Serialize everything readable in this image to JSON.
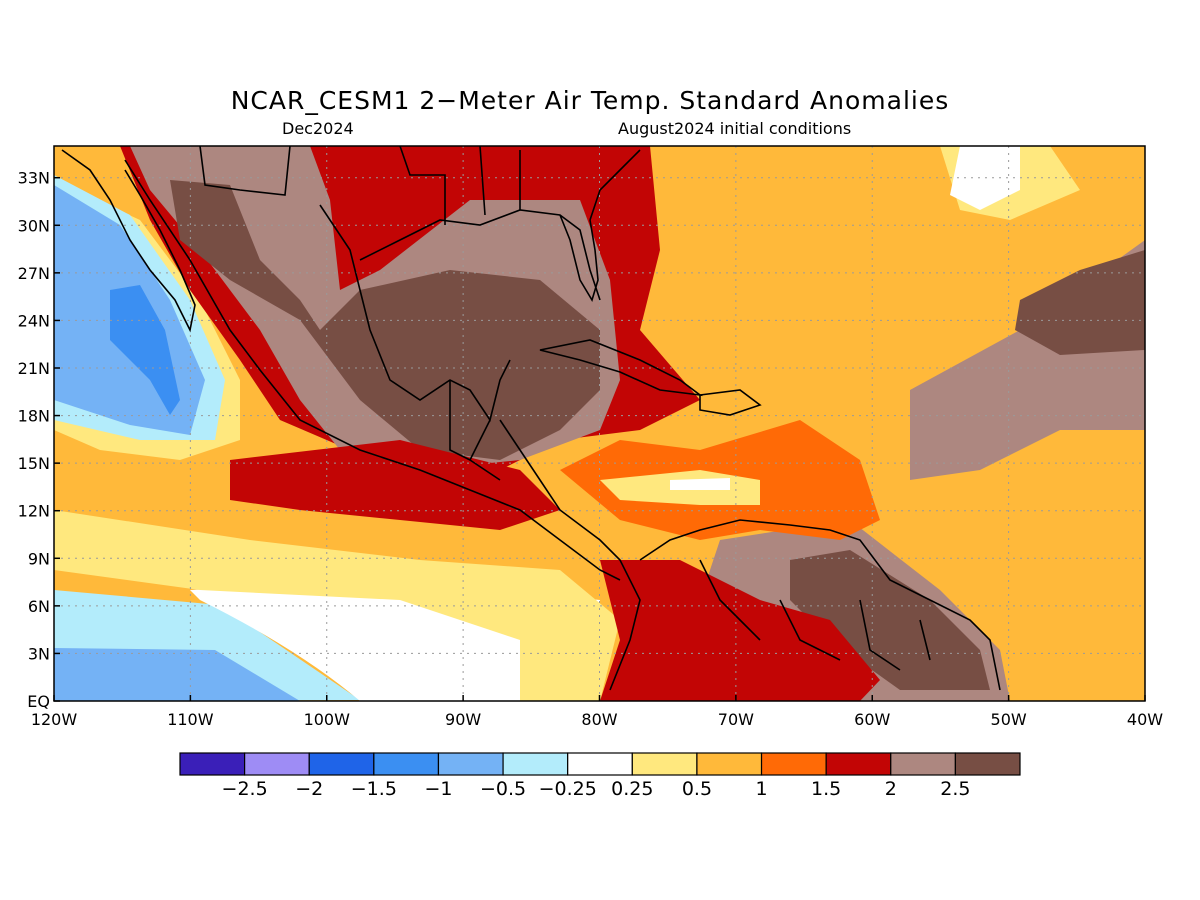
{
  "title": "NCAR_CESM1 2−Meter Air Temp. Standard Anomalies",
  "valid_month": "Dec2024",
  "initial_conditions": "August2024 initial conditions",
  "map": {
    "lon_range": [
      -120,
      -40
    ],
    "lat_range": [
      0,
      35
    ],
    "lat_ticks": [
      {
        "value": 0,
        "label": "EQ"
      },
      {
        "value": 3,
        "label": "3N"
      },
      {
        "value": 6,
        "label": "6N"
      },
      {
        "value": 9,
        "label": "9N"
      },
      {
        "value": 12,
        "label": "12N"
      },
      {
        "value": 15,
        "label": "15N"
      },
      {
        "value": 18,
        "label": "18N"
      },
      {
        "value": 21,
        "label": "21N"
      },
      {
        "value": 24,
        "label": "24N"
      },
      {
        "value": 27,
        "label": "27N"
      },
      {
        "value": 30,
        "label": "30N"
      },
      {
        "value": 33,
        "label": "33N"
      }
    ],
    "lon_ticks": [
      {
        "value": -120,
        "label": "120W"
      },
      {
        "value": -110,
        "label": "110W"
      },
      {
        "value": -100,
        "label": "100W"
      },
      {
        "value": -90,
        "label": "90W"
      },
      {
        "value": -80,
        "label": "80W"
      },
      {
        "value": -70,
        "label": "70W"
      },
      {
        "value": -60,
        "label": "60W"
      },
      {
        "value": -50,
        "label": "50W"
      },
      {
        "value": -40,
        "label": "40W"
      }
    ],
    "gridlines": "dotted"
  },
  "colorbar": {
    "colors": [
      "#3a1fb8",
      "#9e8cf5",
      "#1f64e8",
      "#3b8ff2",
      "#74b2f5",
      "#b3ecfb",
      "#ffffff",
      "#ffe87e",
      "#ffb93a",
      "#ff6a06",
      "#c20505",
      "#ad8780",
      "#774e44"
    ],
    "labels": [
      "−2.5",
      "−2",
      "−1.5",
      "−1",
      "−0.5",
      "−0.25",
      "0.25",
      "0.5",
      "1",
      "1.5",
      "2",
      "2.5"
    ]
  },
  "palette": {
    "p025": "#ffe87e",
    "p05": "#ffb93a",
    "p10": "#ff6a06",
    "p15": "#c20505",
    "p20": "#ad8780",
    "p25": "#774e44",
    "m025": "#b3ecfb",
    "m05": "#74b2f5",
    "m10": "#3b8ff2",
    "white": "#ffffff"
  }
}
